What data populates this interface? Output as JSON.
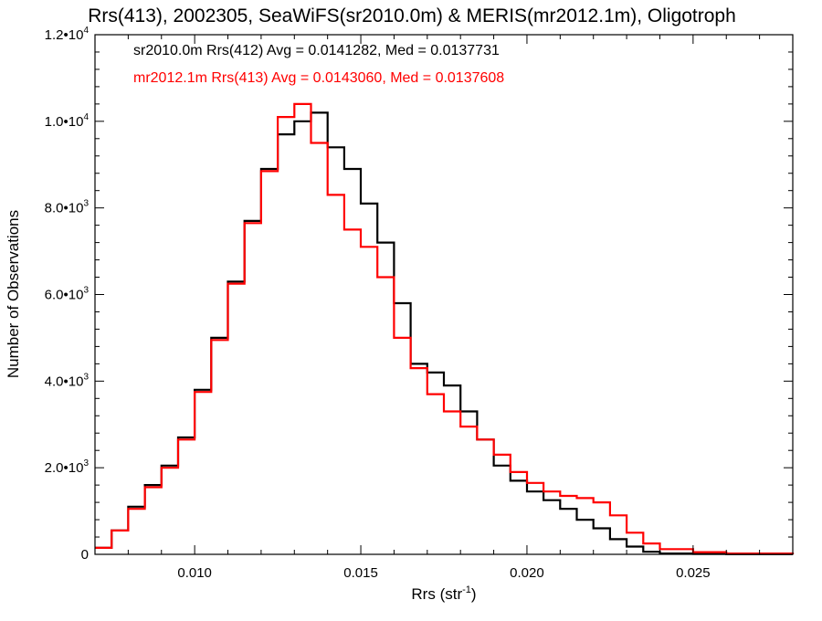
{
  "chart_data": {
    "type": "line",
    "title": "Rrs(413), 2002305, SeaWiFS(sr2010.0m) & MERIS(mr2012.1m), Oligotroph",
    "xlabel_main": "Rrs (str",
    "xlabel_sup": "-1",
    "xlabel_close": ")",
    "ylabel": "Number of Observations",
    "xlim": [
      0.007,
      0.028
    ],
    "ylim": [
      0,
      12000
    ],
    "x_ticks": [
      {
        "value": 0.01,
        "label": "0.010"
      },
      {
        "value": 0.015,
        "label": "0.015"
      },
      {
        "value": 0.02,
        "label": "0.020"
      },
      {
        "value": 0.025,
        "label": "0.025"
      }
    ],
    "y_ticks": [
      {
        "value": 0,
        "mant": "0",
        "exp": ""
      },
      {
        "value": 2000,
        "mant": "2.0•10",
        "exp": "3"
      },
      {
        "value": 4000,
        "mant": "4.0•10",
        "exp": "3"
      },
      {
        "value": 6000,
        "mant": "6.0•10",
        "exp": "3"
      },
      {
        "value": 8000,
        "mant": "8.0•10",
        "exp": "3"
      },
      {
        "value": 10000,
        "mant": "1.0•10",
        "exp": "4"
      },
      {
        "value": 12000,
        "mant": "1.2•10",
        "exp": "4"
      }
    ],
    "grid": false,
    "legend_position": "top-left",
    "series": [
      {
        "name": "sr2010.0m Rrs(412) Avg = 0.0141282, Med = 0.0137731",
        "color": "#000000",
        "x": [
          0.007,
          0.0075,
          0.008,
          0.0085,
          0.009,
          0.0095,
          0.01,
          0.0105,
          0.011,
          0.0115,
          0.012,
          0.0125,
          0.013,
          0.0135,
          0.014,
          0.0145,
          0.015,
          0.0155,
          0.016,
          0.0165,
          0.017,
          0.0175,
          0.018,
          0.0185,
          0.019,
          0.0195,
          0.02,
          0.0205,
          0.021,
          0.0215,
          0.022,
          0.0225,
          0.023,
          0.0235,
          0.024,
          0.025,
          0.026,
          0.028
        ],
        "y": [
          150,
          550,
          1100,
          1600,
          2050,
          2700,
          3800,
          5000,
          6300,
          7700,
          8900,
          9700,
          10000,
          10200,
          9400,
          8900,
          8100,
          7200,
          5800,
          4400,
          4200,
          3900,
          3300,
          2650,
          2050,
          1700,
          1450,
          1250,
          1050,
          800,
          600,
          350,
          180,
          60,
          20,
          10,
          5,
          0
        ]
      },
      {
        "name": "mr2012.1m Rrs(413) Avg = 0.0143060, Med = 0.0137608",
        "color": "#ff0000",
        "x": [
          0.007,
          0.0075,
          0.008,
          0.0085,
          0.009,
          0.0095,
          0.01,
          0.0105,
          0.011,
          0.0115,
          0.012,
          0.0125,
          0.013,
          0.0135,
          0.014,
          0.0145,
          0.015,
          0.0155,
          0.016,
          0.0165,
          0.017,
          0.0175,
          0.018,
          0.0185,
          0.019,
          0.0195,
          0.02,
          0.0205,
          0.021,
          0.0215,
          0.022,
          0.0225,
          0.023,
          0.0235,
          0.024,
          0.025,
          0.026,
          0.028
        ],
        "y": [
          150,
          550,
          1050,
          1550,
          2000,
          2650,
          3750,
          4950,
          6250,
          7650,
          8850,
          10100,
          10400,
          9500,
          8300,
          7500,
          7100,
          6400,
          5000,
          4300,
          3700,
          3300,
          2950,
          2650,
          2300,
          1900,
          1650,
          1450,
          1350,
          1300,
          1200,
          900,
          500,
          250,
          120,
          50,
          20,
          0
        ]
      }
    ]
  }
}
